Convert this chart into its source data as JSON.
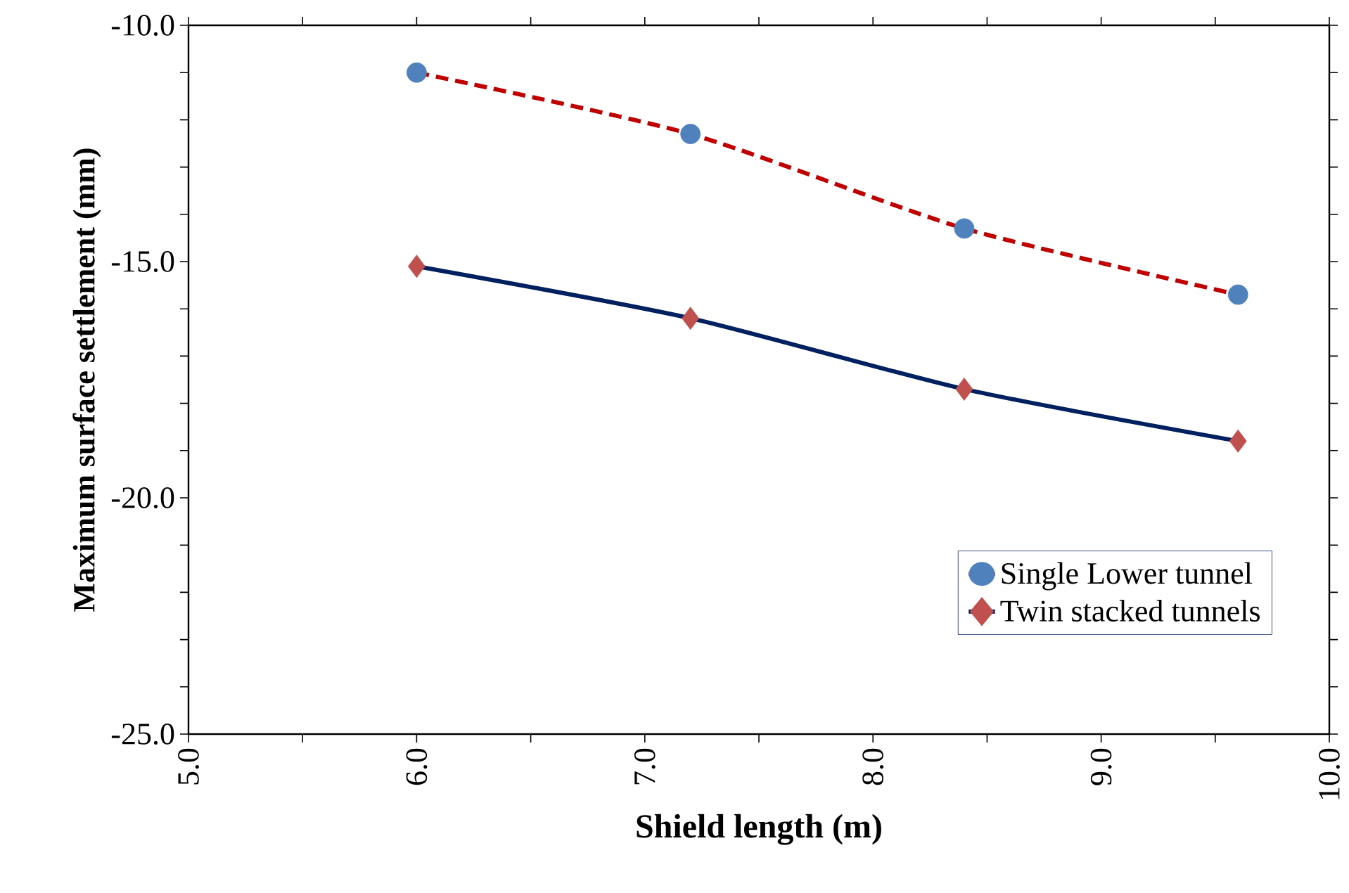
{
  "chart_data": {
    "type": "line",
    "xlabel": "Shield length (m)",
    "ylabel": "Maximum surface settlement (mm)",
    "x": [
      6.0,
      7.2,
      8.4,
      9.6
    ],
    "series": [
      {
        "name": "Single Lower tunnel",
        "color": "#c00000",
        "colors": [
          "#4f81bd",
          "#4f81bd",
          "#4f81bd",
          "#4f81bd"
        ],
        "marker": "circle",
        "line_style": "dashed",
        "values": [
          -11.0,
          -12.3,
          -14.3,
          -15.7
        ]
      },
      {
        "name": "Twin stacked tunnels",
        "color": "#002060",
        "colors": [
          "#c0504d",
          "#c0504d",
          "#c0504d",
          "#c0504d"
        ],
        "marker": "diamond",
        "line_style": "solid",
        "values": [
          -15.1,
          -16.2,
          -17.7,
          -18.8
        ]
      }
    ],
    "xlim": [
      5.0,
      10.0
    ],
    "xticks": [
      {
        "value": 5.0,
        "label": "5.0"
      },
      {
        "value": 5.5,
        "label": null
      },
      {
        "value": 6.0,
        "label": "6.0"
      },
      {
        "value": 6.5,
        "label": null
      },
      {
        "value": 7.0,
        "label": "7.0"
      },
      {
        "value": 7.5,
        "label": null
      },
      {
        "value": 8.0,
        "label": "8.0"
      },
      {
        "value": 8.5,
        "label": null
      },
      {
        "value": 9.0,
        "label": "9.0"
      },
      {
        "value": 9.5,
        "label": null
      },
      {
        "value": 10.0,
        "label": "10.0"
      }
    ],
    "ylim": [
      -25.0,
      -10.0
    ],
    "yticks": [
      {
        "value": -25.0,
        "label": "-25.0"
      },
      {
        "value": -24.0,
        "label": null
      },
      {
        "value": -23.0,
        "label": null
      },
      {
        "value": -22.0,
        "label": null
      },
      {
        "value": -21.0,
        "label": null
      },
      {
        "value": -20.0,
        "label": "-20.0"
      },
      {
        "value": -19.0,
        "label": null
      },
      {
        "value": -18.0,
        "label": null
      },
      {
        "value": -17.0,
        "label": null
      },
      {
        "value": -16.0,
        "label": null
      },
      {
        "value": -15.0,
        "label": "-15.0"
      },
      {
        "value": -14.0,
        "label": null
      },
      {
        "value": -13.0,
        "label": null
      },
      {
        "value": -12.0,
        "label": null
      },
      {
        "value": -11.0,
        "label": null
      },
      {
        "value": -10.0,
        "label": "-10.0"
      }
    ],
    "grid": false,
    "legend": "bottom right"
  }
}
